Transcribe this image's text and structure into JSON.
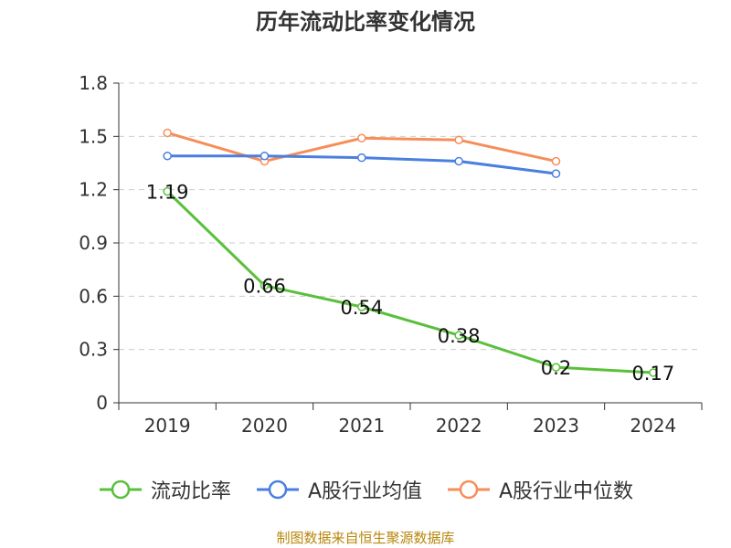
{
  "title": "历年流动比率变化情况",
  "source": "制图数据来自恒生聚源数据库",
  "chart_data": {
    "type": "line",
    "categories": [
      "2019",
      "2020",
      "2021",
      "2022",
      "2023",
      "2024"
    ],
    "ylim": [
      0,
      1.8
    ],
    "yticks": [
      "0",
      "0.3",
      "0.6",
      "0.9",
      "1.2",
      "1.5",
      "1.8"
    ],
    "grid": true,
    "legend_position": "bottom",
    "series": [
      {
        "name": "流动比率",
        "color": "#5ac03c",
        "values": [
          1.19,
          0.66,
          0.54,
          0.38,
          0.2,
          0.17
        ],
        "labels": [
          "1.19",
          "0.66",
          "0.54",
          "0.38",
          "0.2",
          "0.17"
        ]
      },
      {
        "name": "A股行业均值",
        "color": "#4a7fe0",
        "values": [
          1.39,
          1.39,
          1.38,
          1.36,
          1.29,
          null
        ]
      },
      {
        "name": "A股行业中位数",
        "color": "#f68e5a",
        "values": [
          1.52,
          1.36,
          1.49,
          1.48,
          1.36,
          null
        ]
      }
    ]
  }
}
